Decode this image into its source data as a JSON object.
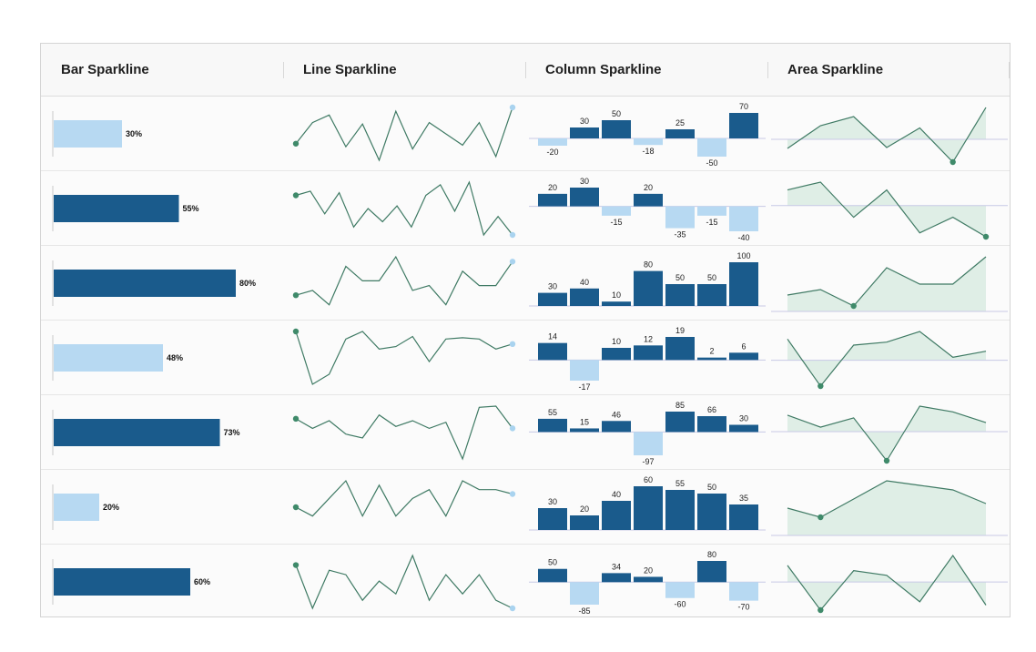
{
  "header": {
    "columns": [
      "Bar Sparkline",
      "Line Sparkline",
      "Column Sparkline",
      "Area Sparkline"
    ]
  },
  "colors": {
    "bar_dark": "#1a5b8c",
    "bar_light": "#b7d9f2",
    "line": "#3f7a64",
    "line_start_marker": "#3f8a6a",
    "line_end_marker": "#a9d3ef",
    "area_fill": "#dfeee6",
    "axis": "#c8c9e6"
  },
  "chart_data": [
    {
      "type": "table",
      "columns": [
        "Bar Sparkline",
        "Line Sparkline",
        "Column Sparkline",
        "Area Sparkline"
      ],
      "rows": [
        {
          "bar": {
            "value": 30,
            "label": "30%",
            "highlight": false
          },
          "line": [
            12,
            40,
            50,
            8,
            38,
            -10,
            55,
            5,
            40,
            25,
            10,
            40,
            -5,
            60
          ],
          "column": [
            -20,
            30,
            50,
            -18,
            25,
            -50,
            70
          ],
          "area": [
            -20,
            30,
            50,
            -18,
            25,
            -50,
            70
          ]
        },
        {
          "bar": {
            "value": 55,
            "label": "55%",
            "highlight": true
          },
          "line": [
            30,
            38,
            -5,
            35,
            -30,
            5,
            -20,
            10,
            -30,
            30,
            50,
            0,
            55,
            -45,
            -10,
            -45
          ],
          "column": [
            20,
            30,
            -15,
            20,
            -35,
            -15,
            -40
          ],
          "area": [
            20,
            30,
            -15,
            20,
            -35,
            -15,
            -40
          ]
        },
        {
          "bar": {
            "value": 80,
            "label": "80%",
            "highlight": true
          },
          "line": [
            30,
            40,
            10,
            90,
            60,
            60,
            110,
            40,
            50,
            10,
            80,
            50,
            50,
            100
          ],
          "column": [
            30,
            40,
            10,
            80,
            50,
            50,
            100
          ],
          "area": [
            30,
            40,
            10,
            80,
            50,
            50,
            100
          ]
        },
        {
          "bar": {
            "value": 48,
            "label": "48%",
            "highlight": false
          },
          "line": [
            14,
            -28,
            -20,
            8,
            14,
            0,
            2,
            10,
            -10,
            8,
            9,
            8,
            0,
            4
          ],
          "column": [
            14,
            -17,
            10,
            12,
            19,
            2,
            6
          ],
          "area": [
            14,
            -17,
            10,
            12,
            19,
            2,
            6
          ]
        },
        {
          "bar": {
            "value": 73,
            "label": "73%",
            "highlight": true
          },
          "line": [
            55,
            30,
            50,
            15,
            5,
            65,
            35,
            50,
            30,
            46,
            -50,
            85,
            88,
            30
          ],
          "column": [
            55,
            15,
            46,
            -97,
            85,
            66,
            30
          ],
          "area": [
            55,
            15,
            46,
            -97,
            85,
            66,
            30
          ]
        },
        {
          "bar": {
            "value": 20,
            "label": "20%",
            "highlight": false
          },
          "line": [
            30,
            20,
            40,
            60,
            20,
            55,
            20,
            40,
            50,
            20,
            60,
            50,
            50,
            45
          ],
          "column": [
            30,
            20,
            40,
            60,
            55,
            50,
            35
          ],
          "area": [
            30,
            20,
            40,
            60,
            55,
            50,
            35
          ]
        },
        {
          "bar": {
            "value": 60,
            "label": "60%",
            "highlight": true
          },
          "line": [
            50,
            -85,
            34,
            20,
            -60,
            0,
            -40,
            80,
            -60,
            20,
            -40,
            20,
            -60,
            -85
          ],
          "column": [
            50,
            -85,
            34,
            20,
            -60,
            80,
            -70
          ],
          "area": [
            50,
            -85,
            34,
            20,
            -60,
            80,
            -70
          ]
        }
      ]
    }
  ]
}
